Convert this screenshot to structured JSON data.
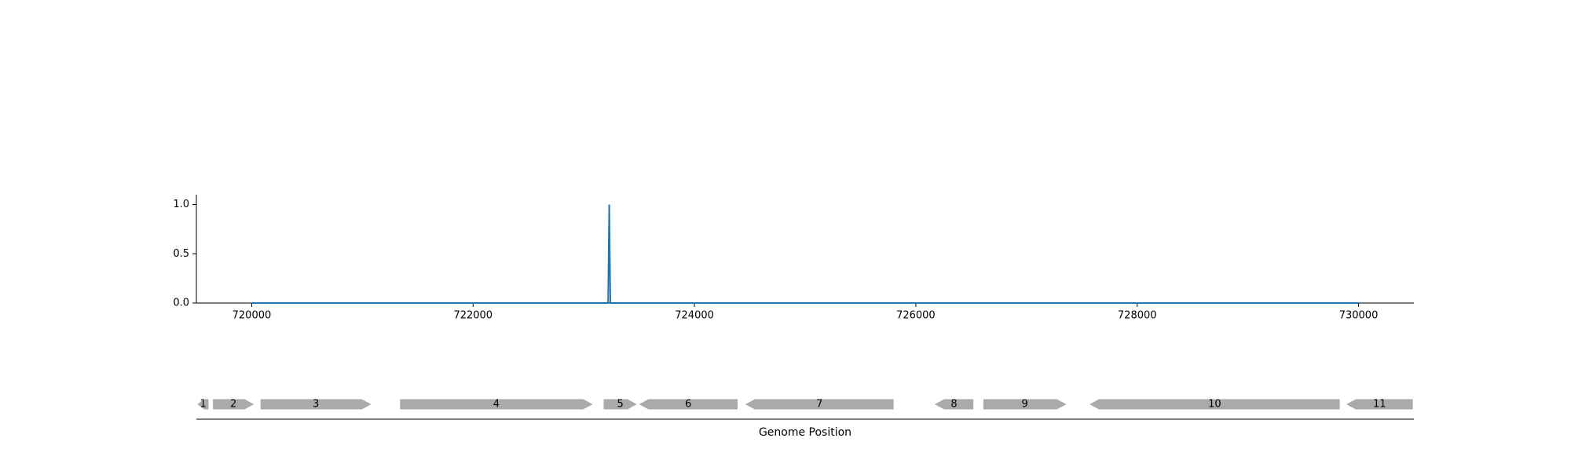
{
  "chart_data": [
    {
      "type": "line",
      "title": "",
      "xlabel": "",
      "ylabel": "",
      "xlim": [
        719500,
        730500
      ],
      "ylim": [
        0,
        1.1
      ],
      "yticks": [
        0.0,
        0.5,
        1.0
      ],
      "ytick_labels": [
        "0.0",
        "0.5",
        "1.0"
      ],
      "xticks": [
        720000,
        722000,
        724000,
        726000,
        728000,
        730000
      ],
      "xtick_labels": [
        "720000",
        "722000",
        "724000",
        "726000",
        "728000",
        "730000"
      ],
      "grid": false,
      "series": [
        {
          "color": "#1f77b4",
          "x": [
            720000,
            723220,
            723230,
            723240,
            730000
          ],
          "y": [
            0,
            0,
            1.0,
            0,
            0
          ]
        }
      ]
    },
    {
      "type": "gene-track",
      "xlabel": "Genome Position",
      "xlim": [
        719500,
        730500
      ],
      "color": "#aaaaaa",
      "genes": [
        {
          "label": "1",
          "start": 719510,
          "end": 719610,
          "strand": "-"
        },
        {
          "label": "2",
          "start": 719650,
          "end": 720020,
          "strand": "+"
        },
        {
          "label": "3",
          "start": 720080,
          "end": 721080,
          "strand": "+"
        },
        {
          "label": "4",
          "start": 721340,
          "end": 723080,
          "strand": "+"
        },
        {
          "label": "5",
          "start": 723180,
          "end": 723480,
          "strand": "+"
        },
        {
          "label": "6",
          "start": 723500,
          "end": 724390,
          "strand": "-"
        },
        {
          "label": "7",
          "start": 724460,
          "end": 725800,
          "strand": "-"
        },
        {
          "label": "8",
          "start": 726170,
          "end": 726520,
          "strand": "-"
        },
        {
          "label": "9",
          "start": 726610,
          "end": 727360,
          "strand": "+"
        },
        {
          "label": "10",
          "start": 727570,
          "end": 729830,
          "strand": "-"
        },
        {
          "label": "11",
          "start": 729890,
          "end": 730490,
          "strand": "-"
        }
      ]
    }
  ]
}
